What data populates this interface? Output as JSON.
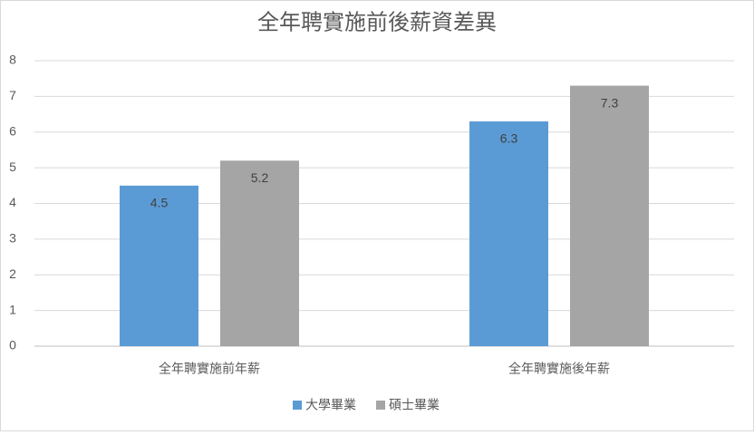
{
  "chart_data": {
    "type": "bar",
    "title": "全年聘實施前後薪資差異",
    "categories": [
      "全年聘實施前年薪",
      "全年聘實施後年薪"
    ],
    "series": [
      {
        "name": "大學畢業",
        "color": "#5b9bd5",
        "values": [
          4.5,
          6.3
        ]
      },
      {
        "name": "碩士畢業",
        "color": "#a5a5a5",
        "values": [
          5.2,
          7.3
        ]
      }
    ],
    "ylim": [
      0,
      8
    ],
    "yticks": [
      0,
      1,
      2,
      3,
      4,
      5,
      6,
      7,
      8
    ],
    "grid": true,
    "legend": "bottom"
  }
}
